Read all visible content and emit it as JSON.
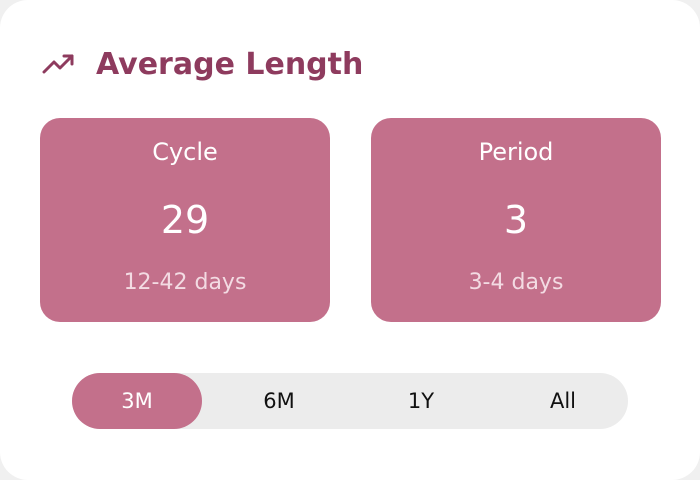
{
  "header": {
    "title": "Average Length"
  },
  "stats": [
    {
      "label": "Cycle",
      "value": "29",
      "range": "12-42 days"
    },
    {
      "label": "Period",
      "value": "3",
      "range": "3-4 days"
    }
  ],
  "tabs": [
    "3M",
    "6M",
    "1Y",
    "All"
  ],
  "active_tab": 0
}
